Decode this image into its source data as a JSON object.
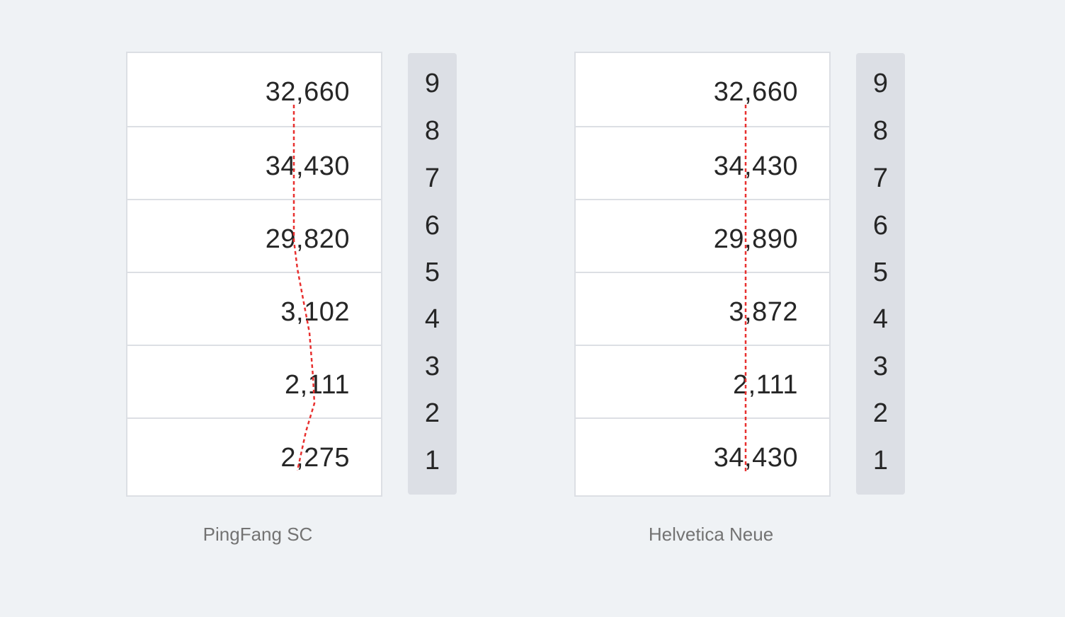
{
  "panels": [
    {
      "caption": "PingFang SC",
      "values": [
        "32,660",
        "34,430",
        "29,820",
        "3,102",
        "2,111",
        "2,275"
      ],
      "digits": [
        "9",
        "8",
        "7",
        "6",
        "5",
        "4",
        "3",
        "2",
        "1"
      ]
    },
    {
      "caption": "Helvetica Neue",
      "values": [
        "32,660",
        "34,430",
        "29,890",
        "3,872",
        "2,111",
        "34,430"
      ],
      "digits": [
        "9",
        "8",
        "7",
        "6",
        "5",
        "4",
        "3",
        "2",
        "1"
      ]
    }
  ],
  "colors": {
    "background": "#eff2f5",
    "box": "#ffffff",
    "border": "#dcdfe4",
    "digit_column": "#dcdfe5",
    "guide_line": "#e8302f",
    "text": "#262626",
    "caption": "#737373"
  }
}
